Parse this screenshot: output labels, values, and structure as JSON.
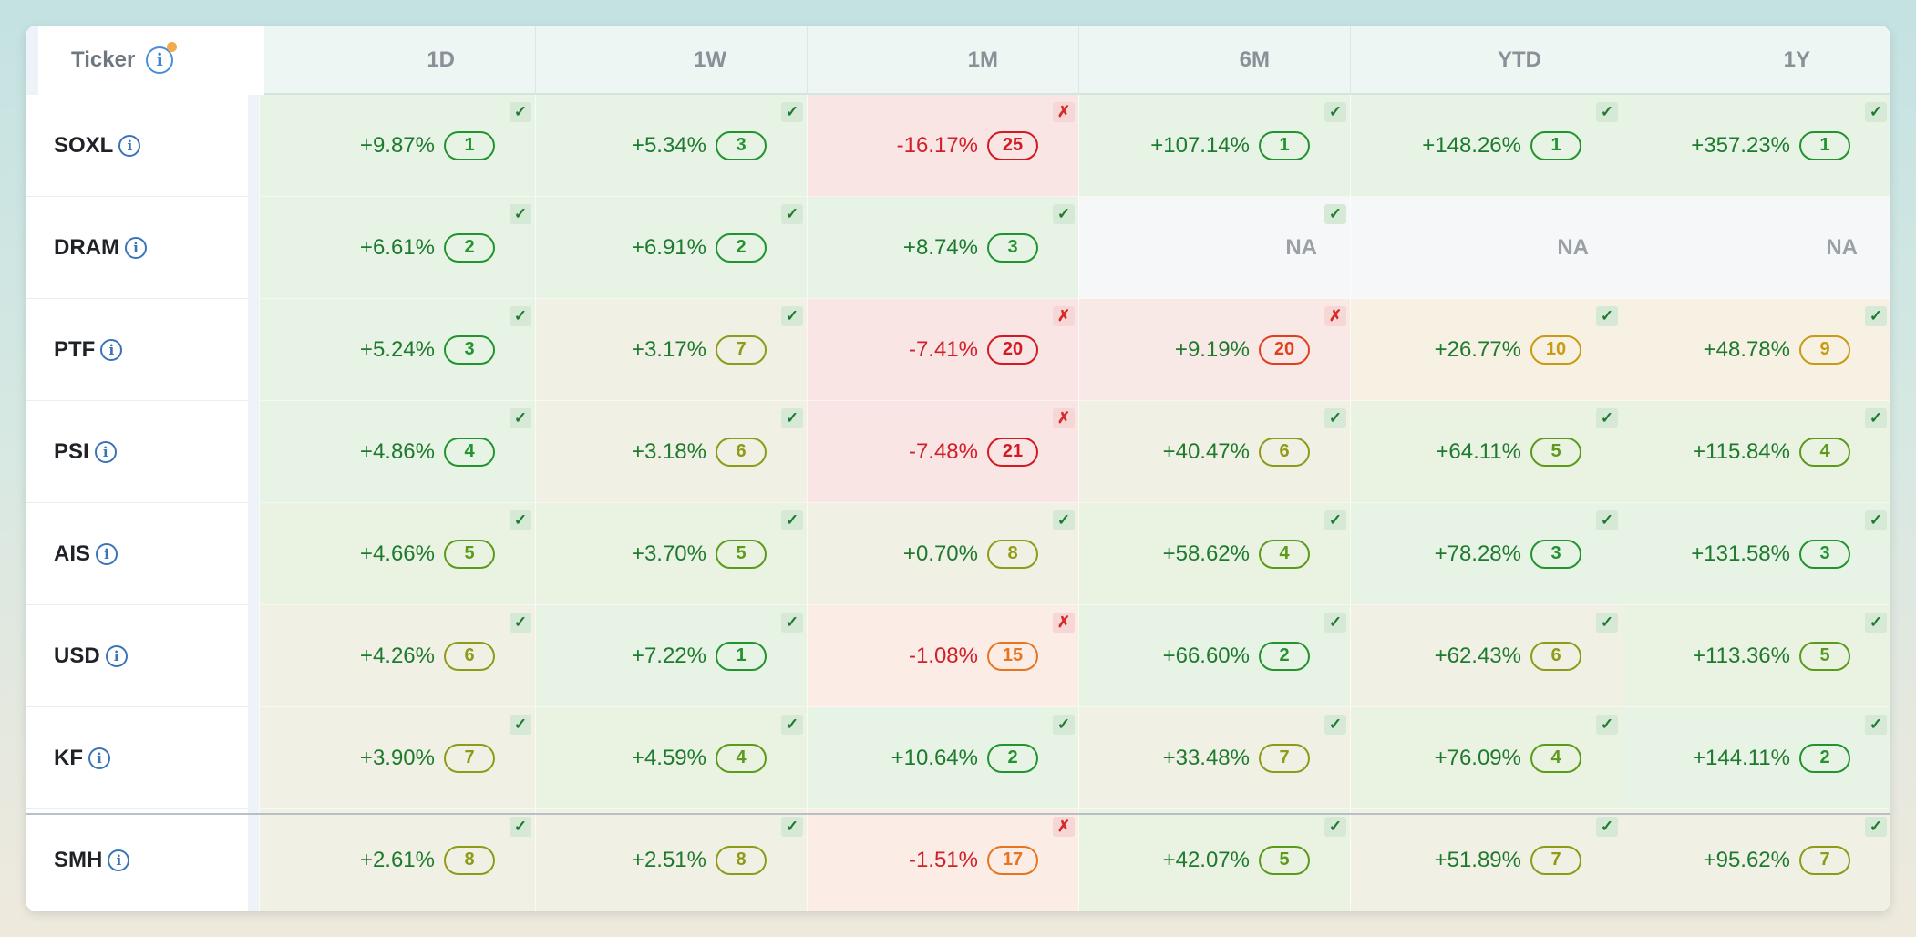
{
  "header": {
    "ticker_label": "Ticker",
    "info_glyph": "i",
    "periods": [
      "1D",
      "1W",
      "1M",
      "6M",
      "YTD",
      "1Y"
    ]
  },
  "rows": [
    {
      "ticker": "SOXL",
      "info": "i",
      "cells": [
        {
          "value": "+9.87%",
          "rank": "1",
          "flag": "✓",
          "status": "ok",
          "tone": "green",
          "color": "#1e7a2e"
        },
        {
          "value": "+5.34%",
          "rank": "3",
          "flag": "✓",
          "status": "ok",
          "tone": "green",
          "color": "#1e7a2e"
        },
        {
          "value": "-16.17%",
          "rank": "25",
          "flag": "✗",
          "status": "bad",
          "tone": "red",
          "color": "#d0202a"
        },
        {
          "value": "+107.14%",
          "rank": "1",
          "flag": "✓",
          "status": "ok",
          "tone": "green",
          "color": "#1e7a2e"
        },
        {
          "value": "+148.26%",
          "rank": "1",
          "flag": "✓",
          "status": "ok",
          "tone": "green",
          "color": "#1e7a2e"
        },
        {
          "value": "+357.23%",
          "rank": "1",
          "flag": "✓",
          "status": "ok",
          "tone": "green",
          "color": "#1e7a2e"
        }
      ]
    },
    {
      "ticker": "DRAM",
      "info": "i",
      "cells": [
        {
          "value": "+6.61%",
          "rank": "2",
          "flag": "✓",
          "status": "ok",
          "tone": "green",
          "color": "#1e7a2e"
        },
        {
          "value": "+6.91%",
          "rank": "2",
          "flag": "✓",
          "status": "ok",
          "tone": "green",
          "color": "#1e7a2e"
        },
        {
          "value": "+8.74%",
          "rank": "3",
          "flag": "✓",
          "status": "ok",
          "tone": "green",
          "color": "#1e7a2e"
        },
        {
          "value": "NA",
          "rank": null,
          "flag": "✓",
          "status": "ok",
          "tone": "na",
          "color": "#9aa0a6"
        },
        {
          "value": "NA",
          "rank": null,
          "flag": null,
          "status": "none",
          "tone": "na",
          "color": "#9aa0a6"
        },
        {
          "value": "NA",
          "rank": null,
          "flag": null,
          "status": "none",
          "tone": "na",
          "color": "#9aa0a6"
        }
      ]
    },
    {
      "ticker": "PTF",
      "info": "i",
      "cells": [
        {
          "value": "+5.24%",
          "rank": "3",
          "flag": "✓",
          "status": "ok",
          "tone": "green",
          "color": "#1e7a2e"
        },
        {
          "value": "+3.17%",
          "rank": "7",
          "flag": "✓",
          "status": "ok",
          "tone": "olive",
          "color": "#1e7a2e"
        },
        {
          "value": "-7.41%",
          "rank": "20",
          "flag": "✗",
          "status": "bad",
          "tone": "red",
          "color": "#d0202a"
        },
        {
          "value": "+9.19%",
          "rank": "20",
          "flag": "✗",
          "status": "bad",
          "tone": "redlight",
          "color": "#1e7a2e"
        },
        {
          "value": "+26.77%",
          "rank": "10",
          "flag": "✓",
          "status": "ok",
          "tone": "amber",
          "color": "#1e7a2e"
        },
        {
          "value": "+48.78%",
          "rank": "9",
          "flag": "✓",
          "status": "ok",
          "tone": "amber",
          "color": "#1e7a2e"
        }
      ]
    },
    {
      "ticker": "PSI",
      "info": "i",
      "cells": [
        {
          "value": "+4.86%",
          "rank": "4",
          "flag": "✓",
          "status": "ok",
          "tone": "green",
          "color": "#1e7a2e"
        },
        {
          "value": "+3.18%",
          "rank": "6",
          "flag": "✓",
          "status": "ok",
          "tone": "olive",
          "color": "#1e7a2e"
        },
        {
          "value": "-7.48%",
          "rank": "21",
          "flag": "✗",
          "status": "bad",
          "tone": "red",
          "color": "#d0202a"
        },
        {
          "value": "+40.47%",
          "rank": "6",
          "flag": "✓",
          "status": "ok",
          "tone": "olive",
          "color": "#1e7a2e"
        },
        {
          "value": "+64.11%",
          "rank": "5",
          "flag": "✓",
          "status": "ok",
          "tone": "olivegreen",
          "color": "#1e7a2e"
        },
        {
          "value": "+115.84%",
          "rank": "4",
          "flag": "✓",
          "status": "ok",
          "tone": "olivegreen",
          "color": "#1e7a2e"
        }
      ]
    },
    {
      "ticker": "AIS",
      "info": "i",
      "cells": [
        {
          "value": "+4.66%",
          "rank": "5",
          "flag": "✓",
          "status": "ok",
          "tone": "olivegreen",
          "color": "#1e7a2e"
        },
        {
          "value": "+3.70%",
          "rank": "5",
          "flag": "✓",
          "status": "ok",
          "tone": "olivegreen",
          "color": "#1e7a2e"
        },
        {
          "value": "+0.70%",
          "rank": "8",
          "flag": "✓",
          "status": "ok",
          "tone": "olive",
          "color": "#1e7a2e"
        },
        {
          "value": "+58.62%",
          "rank": "4",
          "flag": "✓",
          "status": "ok",
          "tone": "olivegreen",
          "color": "#1e7a2e"
        },
        {
          "value": "+78.28%",
          "rank": "3",
          "flag": "✓",
          "status": "ok",
          "tone": "green",
          "color": "#1e7a2e"
        },
        {
          "value": "+131.58%",
          "rank": "3",
          "flag": "✓",
          "status": "ok",
          "tone": "green",
          "color": "#1e7a2e"
        }
      ]
    },
    {
      "ticker": "USD",
      "info": "i",
      "cells": [
        {
          "value": "+4.26%",
          "rank": "6",
          "flag": "✓",
          "status": "ok",
          "tone": "olive",
          "color": "#1e7a2e"
        },
        {
          "value": "+7.22%",
          "rank": "1",
          "flag": "✓",
          "status": "ok",
          "tone": "green",
          "color": "#1e7a2e"
        },
        {
          "value": "-1.08%",
          "rank": "15",
          "flag": "✗",
          "status": "bad",
          "tone": "orange",
          "color": "#d0202a"
        },
        {
          "value": "+66.60%",
          "rank": "2",
          "flag": "✓",
          "status": "ok",
          "tone": "green",
          "color": "#1e7a2e"
        },
        {
          "value": "+62.43%",
          "rank": "6",
          "flag": "✓",
          "status": "ok",
          "tone": "olive",
          "color": "#1e7a2e"
        },
        {
          "value": "+113.36%",
          "rank": "5",
          "flag": "✓",
          "status": "ok",
          "tone": "olivegreen",
          "color": "#1e7a2e"
        }
      ]
    },
    {
      "ticker": "KF",
      "info": "i",
      "cells": [
        {
          "value": "+3.90%",
          "rank": "7",
          "flag": "✓",
          "status": "ok",
          "tone": "olive",
          "color": "#1e7a2e"
        },
        {
          "value": "+4.59%",
          "rank": "4",
          "flag": "✓",
          "status": "ok",
          "tone": "olivegreen",
          "color": "#1e7a2e"
        },
        {
          "value": "+10.64%",
          "rank": "2",
          "flag": "✓",
          "status": "ok",
          "tone": "green",
          "color": "#1e7a2e"
        },
        {
          "value": "+33.48%",
          "rank": "7",
          "flag": "✓",
          "status": "ok",
          "tone": "olive",
          "color": "#1e7a2e"
        },
        {
          "value": "+76.09%",
          "rank": "4",
          "flag": "✓",
          "status": "ok",
          "tone": "olivegreen",
          "color": "#1e7a2e"
        },
        {
          "value": "+144.11%",
          "rank": "2",
          "flag": "✓",
          "status": "ok",
          "tone": "green",
          "color": "#1e7a2e"
        }
      ]
    },
    {
      "ticker": "SMH",
      "info": "i",
      "cells": [
        {
          "value": "+2.61%",
          "rank": "8",
          "flag": "✓",
          "status": "ok",
          "tone": "olive",
          "color": "#1e7a2e"
        },
        {
          "value": "+2.51%",
          "rank": "8",
          "flag": "✓",
          "status": "ok",
          "tone": "olive",
          "color": "#1e7a2e"
        },
        {
          "value": "-1.51%",
          "rank": "17",
          "flag": "✗",
          "status": "bad",
          "tone": "orange",
          "color": "#d0202a"
        },
        {
          "value": "+42.07%",
          "rank": "5",
          "flag": "✓",
          "status": "ok",
          "tone": "olivegreen",
          "color": "#1e7a2e"
        },
        {
          "value": "+51.89%",
          "rank": "7",
          "flag": "✓",
          "status": "ok",
          "tone": "olive",
          "color": "#1e7a2e"
        },
        {
          "value": "+95.62%",
          "rank": "7",
          "flag": "✓",
          "status": "ok",
          "tone": "olive",
          "color": "#1e7a2e"
        }
      ]
    }
  ],
  "tones": {
    "green": {
      "bg": "#e7f3e5",
      "badge": "#22932f"
    },
    "olivegreen": {
      "bg": "#eaf2e2",
      "badge": "#5c9a1c"
    },
    "olive": {
      "bg": "#f0f1e4",
      "badge": "#8e9a18"
    },
    "amber": {
      "bg": "#f7f1e4",
      "badge": "#c99a12"
    },
    "orange": {
      "bg": "#fbece6",
      "badge": "#e8741e"
    },
    "redlight": {
      "bg": "#f9e9e6",
      "badge": "#e0401e"
    },
    "red": {
      "bg": "#fae5e5",
      "badge": "#d21a22"
    },
    "na": {
      "bg": "#f6f7f9",
      "badge": "#9aa0a6"
    }
  }
}
